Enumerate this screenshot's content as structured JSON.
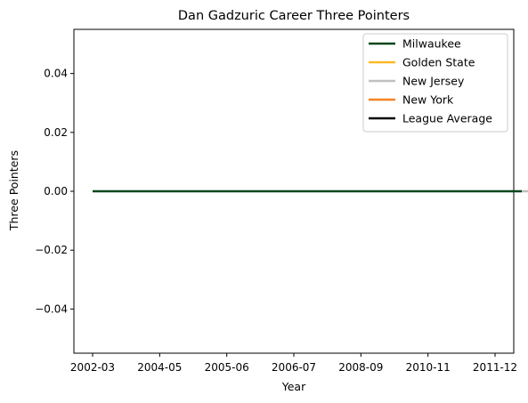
{
  "chart_data": {
    "type": "line",
    "title": "Dan Gadzuric Career Three Pointers",
    "xlabel": "Year",
    "ylabel": "Three Pointers",
    "x_categories": [
      "2002-03",
      "2004-05",
      "2005-06",
      "2006-07",
      "2008-09",
      "2010-11",
      "2011-12"
    ],
    "ylim": [
      -0.055,
      0.055
    ],
    "yticks": [
      0.04,
      0.02,
      0.0,
      -0.02,
      -0.04
    ],
    "ytick_labels": [
      "0.04",
      "0.02",
      "0.00",
      "−0.02",
      "−0.04"
    ],
    "grid": false,
    "legend_position": "top-right",
    "series": [
      {
        "name": "Milwaukee",
        "color": "#00471B",
        "x_from": 0,
        "x_to": 6.4,
        "value": 0
      },
      {
        "name": "Golden State",
        "color": "#FDB927",
        "x_from": 6.4,
        "x_to": 6.4,
        "value": 0
      },
      {
        "name": "New Jersey",
        "color": "#C0C0C0",
        "x_from": 6.4,
        "x_to": 7.25,
        "value": 0
      },
      {
        "name": "New York",
        "color": "#F58426",
        "x_from": 6.4,
        "x_to": 6.4,
        "value": 0
      },
      {
        "name": "League Average",
        "color": "#000000",
        "x_from": 0,
        "x_to": 0,
        "value": 0
      }
    ]
  }
}
